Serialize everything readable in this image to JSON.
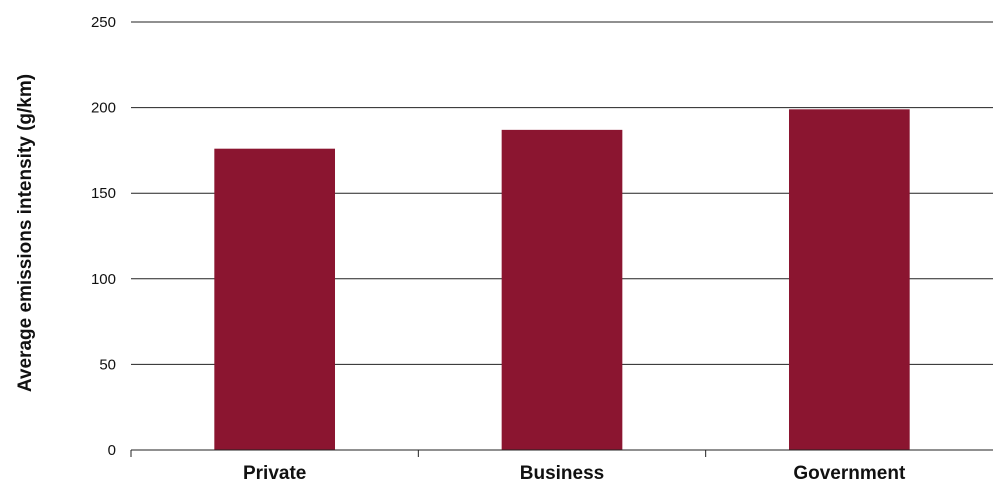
{
  "chart_data": {
    "type": "bar",
    "title": "",
    "xlabel": "",
    "ylabel": "Average emissions intensity (g/km)",
    "categories": [
      "Private",
      "Business",
      "Government"
    ],
    "values": [
      176,
      187,
      199
    ],
    "ylim": [
      0,
      250
    ],
    "yticks": [
      0,
      50,
      100,
      150,
      200,
      250
    ],
    "grid": true,
    "legend": "none",
    "colors": {
      "bar": "#8b1530",
      "grid": "#222222",
      "axis": "#222222"
    }
  }
}
